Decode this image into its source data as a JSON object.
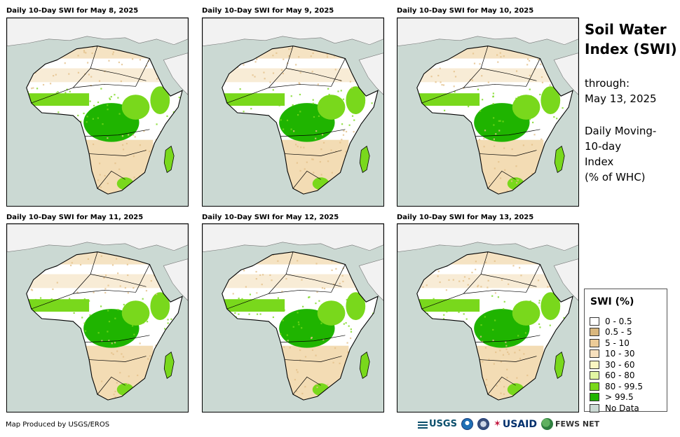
{
  "panels": [
    {
      "title": "Daily 10-Day SWI for May 8, 2025"
    },
    {
      "title": "Daily 10-Day SWI for May 9, 2025"
    },
    {
      "title": "Daily 10-Day SWI for May 10, 2025"
    },
    {
      "title": "Daily 10-Day SWI for May 11, 2025"
    },
    {
      "title": "Daily 10-Day SWI for May 12, 2025"
    },
    {
      "title": "Daily 10-Day SWI for May 13, 2025"
    }
  ],
  "sidebar": {
    "title_line1": "Soil Water",
    "title_line2": "Index (SWI)",
    "through_label": "through:",
    "through_date": "May 13, 2025",
    "desc_line1": "Daily Moving-",
    "desc_line2": "10-day",
    "desc_line3": "Index",
    "desc_line4": "(% of WHC)"
  },
  "legend": {
    "title": "SWI (%)",
    "items": [
      {
        "label": "0 - 0.5",
        "color": "#ffffff"
      },
      {
        "label": "0.5 - 5",
        "color": "#d9b77e"
      },
      {
        "label": "5 - 10",
        "color": "#eccb98"
      },
      {
        "label": "10 - 30",
        "color": "#f7e0bd"
      },
      {
        "label": "30 - 60",
        "color": "#fbf6c2"
      },
      {
        "label": "60 - 80",
        "color": "#e3f7a3"
      },
      {
        "label": "80 - 99.5",
        "color": "#79d81c"
      },
      {
        "label": "> 99.5",
        "color": "#1fb400"
      },
      {
        "label": "No Data",
        "color": "#cbd9d3"
      }
    ]
  },
  "footer": {
    "credit": "Map Produced by USGS/EROS",
    "logo_usgs": "USGS",
    "logo_usaid": "USAID",
    "logo_fews": "FEWS NET"
  },
  "colors": {
    "ocean": "#cbd9d3",
    "land_dry": "#ffffff",
    "land_tan": "#f3dcb4",
    "land_tan_dark": "#e3c08a",
    "green_light": "#79d81c",
    "green_dark": "#1fb400"
  }
}
